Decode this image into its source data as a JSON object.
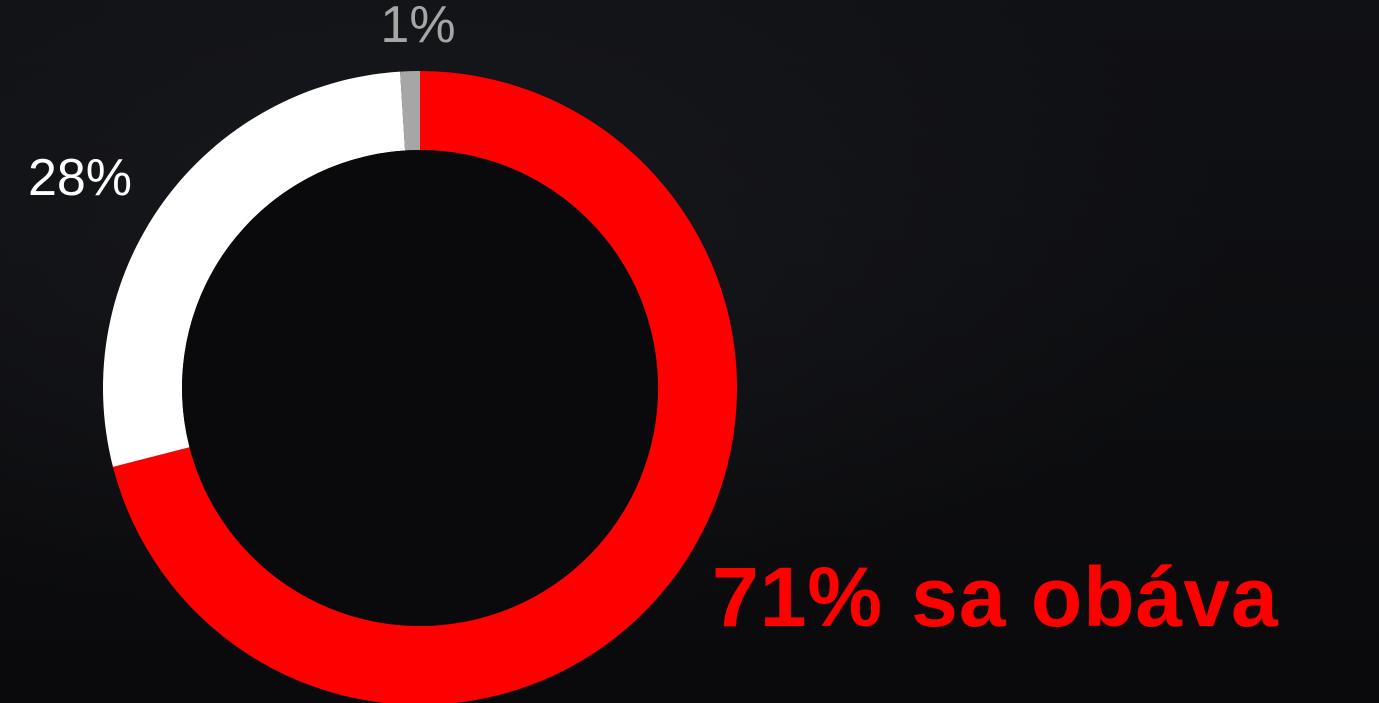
{
  "chart_data": {
    "type": "pie",
    "style": "donut",
    "slices": [
      {
        "label": "71%",
        "value": 71,
        "color": "#ff0000"
      },
      {
        "label": "28%",
        "value": 28,
        "color": "#ffffff"
      },
      {
        "label": "1%",
        "value": 1,
        "color": "#a6a6a6"
      }
    ],
    "start_angle_deg": 0,
    "direction": "clockwise",
    "legend": "none"
  },
  "headline": {
    "percent": "71%",
    "text": "sa obáva"
  },
  "colors": {
    "background": "#0b0b0d",
    "accent": "#ff0000",
    "neutral": "#ffffff",
    "minor": "#a6a6a6"
  }
}
